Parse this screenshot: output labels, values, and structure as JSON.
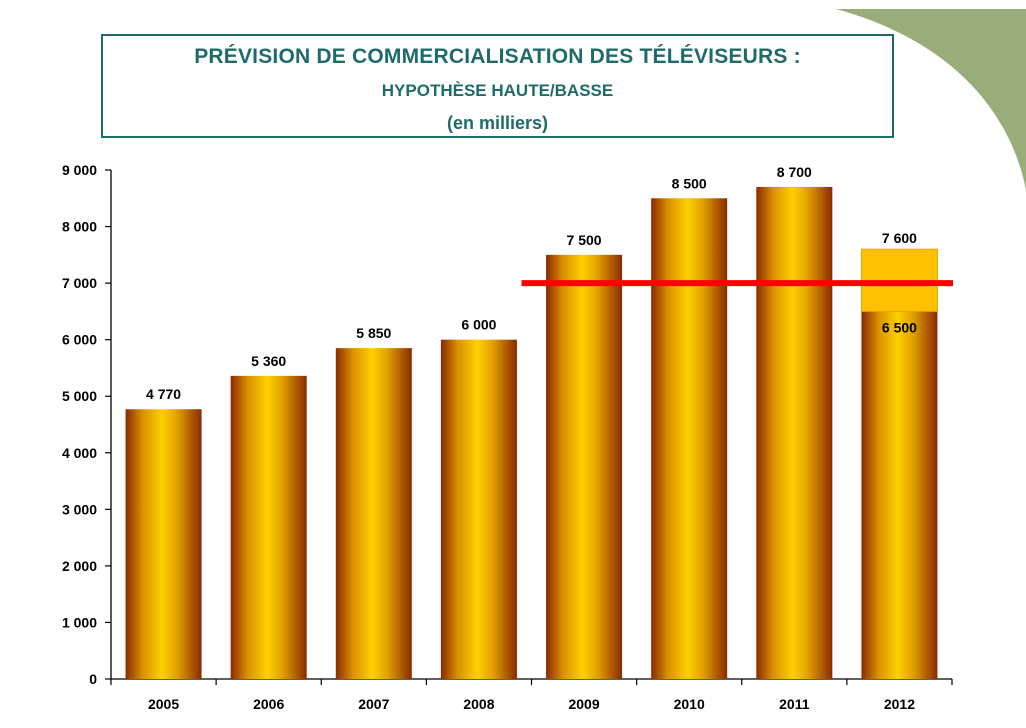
{
  "colors": {
    "title": "#1f6b6b",
    "bar_light": "#ffd000",
    "bar_dark": "#8a2a00",
    "high_band": "#ffc000",
    "threshold_line": "#ff0000",
    "corner_green": "#98ad7a"
  },
  "title": {
    "line1": "PRÉVISION DE COMMERCIALISATION DES TÉLÉVISEURS :",
    "line2": "HYPOTHÈSE HAUTE/BASSE",
    "line3": "(en milliers)"
  },
  "chart_data": {
    "type": "bar",
    "title": "PRÉVISION DE COMMERCIALISATION DES TÉLÉVISEURS : HYPOTHÈSE HAUTE/BASSE (en milliers)",
    "xlabel": "",
    "ylabel": "",
    "categories": [
      "2005",
      "2006",
      "2007",
      "2008",
      "2009",
      "2010",
      "2011",
      "2012"
    ],
    "values": [
      4770,
      5360,
      5850,
      6000,
      7500,
      8500,
      8700,
      6500
    ],
    "value_labels": [
      "4 770",
      "5 360",
      "5 850",
      "6 000",
      "7 500",
      "8 500",
      "8 700",
      "6 500"
    ],
    "high_hypothesis": {
      "category": "2012",
      "low": 6500,
      "high": 7600,
      "high_label": "7 600"
    },
    "threshold": {
      "value": 7000,
      "from_category": "2009"
    },
    "ylim": [
      0,
      9000
    ],
    "yticks": [
      0,
      1000,
      2000,
      3000,
      4000,
      5000,
      6000,
      7000,
      8000,
      9000
    ],
    "ytick_labels": [
      "0",
      "1 000",
      "2 000",
      "3 000",
      "4 000",
      "5 000",
      "6 000",
      "7 000",
      "8 000",
      "9 000"
    ],
    "grid": false,
    "legend": "none"
  }
}
